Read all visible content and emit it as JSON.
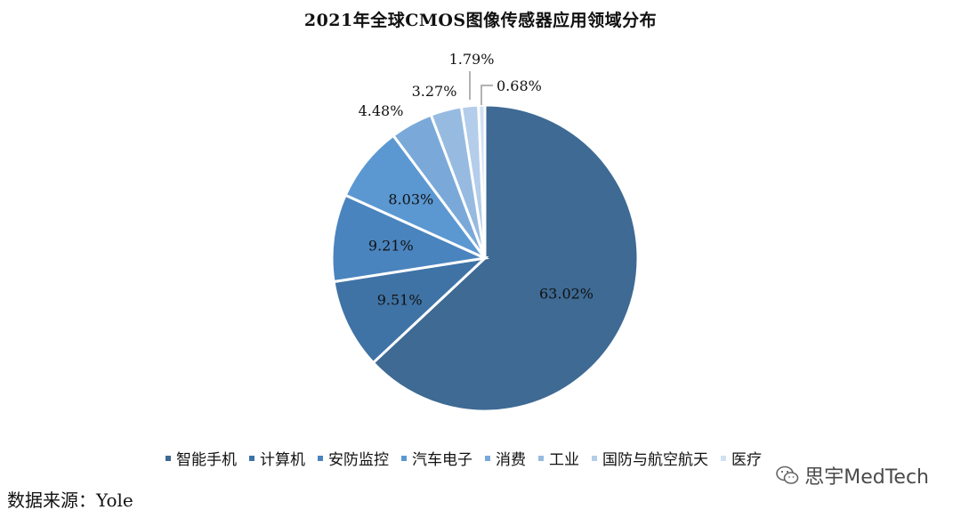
{
  "chart_data": {
    "type": "pie",
    "title": "2021年全球CMOS图像传感器应用领域分布",
    "slices": [
      {
        "name": "智能手机",
        "value": 63.02,
        "label": "63.02%",
        "color": "#3e6a94"
      },
      {
        "name": "计算机",
        "value": 9.51,
        "label": "9.51%",
        "color": "#3f73a6"
      },
      {
        "name": "安防监控",
        "value": 9.21,
        "label": "9.21%",
        "color": "#4a84bf"
      },
      {
        "name": "汽车电子",
        "value": 8.03,
        "label": "8.03%",
        "color": "#5b98d2"
      },
      {
        "name": "消费",
        "value": 4.48,
        "label": "4.48%",
        "color": "#7aa9d9"
      },
      {
        "name": "工业",
        "value": 3.27,
        "label": "3.27%",
        "color": "#97bbe0"
      },
      {
        "name": "国防与航空航天",
        "value": 1.79,
        "label": "1.79%",
        "color": "#b3cdea"
      },
      {
        "name": "医疗",
        "value": 0.68,
        "label": "0.68%",
        "color": "#d1e1f3"
      }
    ],
    "legend_position": "bottom"
  },
  "source": "数据来源：Yole",
  "watermark": "思宇MedTech"
}
